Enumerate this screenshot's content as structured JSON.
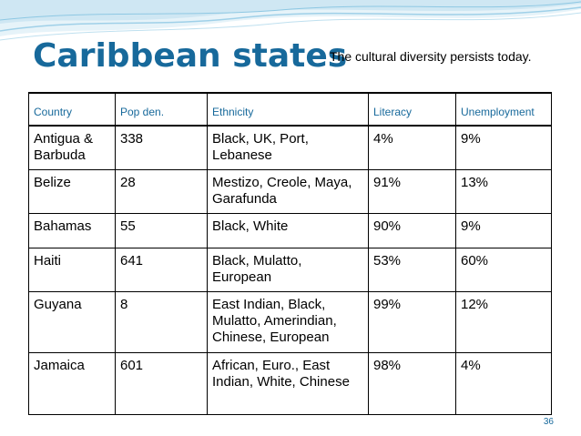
{
  "slide": {
    "title": "Caribbean states",
    "subtitle": "The cultural diversity persists today.",
    "page_number": "36"
  },
  "table": {
    "headers": [
      "Country",
      "Pop den.",
      "Ethnicity",
      "Literacy",
      "Unemployment"
    ],
    "rows": [
      [
        "Antigua & Barbuda",
        "338",
        "Black, UK, Port, Lebanese",
        "4%",
        "9%"
      ],
      [
        "Belize",
        "28",
        "Mestizo, Creole, Maya, Garafunda",
        "91%",
        "13%"
      ],
      [
        "Bahamas",
        "55",
        "Black, White",
        "90%",
        "9%"
      ],
      [
        "Haiti",
        "641",
        "Black, Mulatto, European",
        "53%",
        "60%"
      ],
      [
        "Guyana",
        "8",
        "East Indian, Black, Mulatto, Amerindian, Chinese, European",
        "99%",
        "12%"
      ],
      [
        "Jamaica",
        "601",
        "African, Euro., East Indian, White, Chinese",
        "98%",
        "4%"
      ]
    ]
  },
  "colors": {
    "accent": "#17699b",
    "wave_light": "#cfe7f3",
    "wave_mid": "#9fd0e8"
  }
}
